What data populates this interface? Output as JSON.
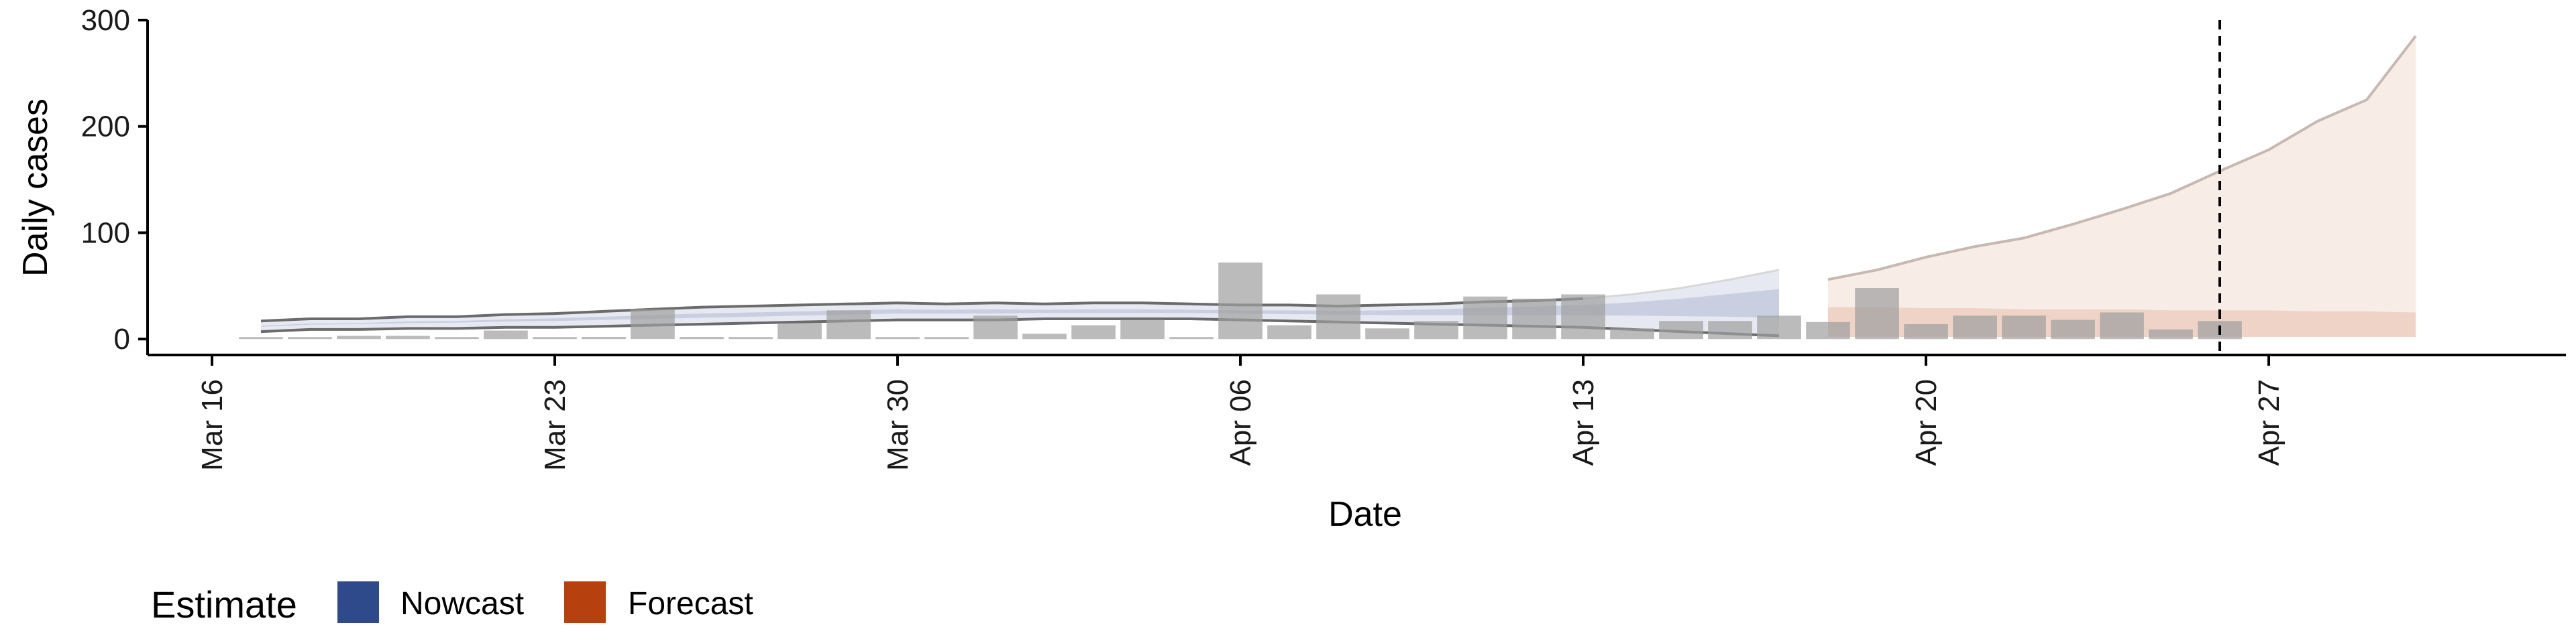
{
  "colors": {
    "nowcast": "#2F4A8A",
    "forecast": "#B7410E",
    "bars": "#9E9E9E",
    "line": "#6B6B6B",
    "axis": "#000000"
  },
  "chart_data": {
    "type": "bar",
    "xlabel": "Date",
    "ylabel": "Daily cases",
    "x_ticks": [
      "Mar 16",
      "Mar 23",
      "Mar 30",
      "Apr 06",
      "Apr 13",
      "Apr 20",
      "Apr 27"
    ],
    "y_ticks": [
      "0",
      "100",
      "200",
      "300"
    ],
    "ylim": [
      -15,
      300
    ],
    "xlim": [
      "2020-03-16",
      "2020-04-30"
    ],
    "marker_date": "2020-04-26",
    "dates": [
      "2020-03-17",
      "2020-03-18",
      "2020-03-19",
      "2020-03-20",
      "2020-03-21",
      "2020-03-22",
      "2020-03-23",
      "2020-03-24",
      "2020-03-25",
      "2020-03-26",
      "2020-03-27",
      "2020-03-28",
      "2020-03-29",
      "2020-03-30",
      "2020-03-31",
      "2020-04-01",
      "2020-04-02",
      "2020-04-03",
      "2020-04-04",
      "2020-04-05",
      "2020-04-06",
      "2020-04-07",
      "2020-04-08",
      "2020-04-09",
      "2020-04-10",
      "2020-04-11",
      "2020-04-12",
      "2020-04-13",
      "2020-04-14",
      "2020-04-15",
      "2020-04-16",
      "2020-04-17",
      "2020-04-18",
      "2020-04-19",
      "2020-04-20",
      "2020-04-21",
      "2020-04-22",
      "2020-04-23",
      "2020-04-24",
      "2020-04-25",
      "2020-04-26",
      "2020-04-27",
      "2020-04-28",
      "2020-04-29",
      "2020-04-30"
    ],
    "series": [
      {
        "name": "Daily cases (observed)",
        "values": [
          0,
          0,
          3,
          3,
          0,
          8,
          0,
          2,
          28,
          2,
          0,
          15,
          27,
          0,
          0,
          22,
          5,
          13,
          18,
          0,
          72,
          13,
          42,
          10,
          17,
          40,
          38,
          42,
          10,
          17,
          17,
          22,
          16,
          48,
          14,
          22,
          22,
          18,
          25,
          9,
          17,
          null,
          null,
          null,
          null
        ]
      },
      {
        "name": "Nowcast",
        "lower": [
          7,
          9,
          9,
          10,
          10,
          11,
          11,
          12,
          13,
          14,
          15,
          16,
          17,
          18,
          18,
          18,
          19,
          19,
          19,
          19,
          18,
          17,
          16,
          15,
          14,
          13,
          12,
          11,
          9,
          7,
          5,
          3
        ],
        "median": [
          12,
          14,
          15,
          16,
          17,
          18,
          19,
          20,
          21,
          22,
          23,
          24,
          25,
          26,
          26,
          26,
          26,
          26,
          26,
          26,
          26,
          26,
          26,
          26,
          27,
          28,
          29,
          30,
          31,
          32,
          33,
          33
        ],
        "upper": [
          17,
          19,
          19,
          21,
          21,
          23,
          24,
          26,
          28,
          30,
          31,
          32,
          33,
          34,
          33,
          34,
          33,
          34,
          34,
          33,
          32,
          32,
          31,
          32,
          33,
          35,
          36,
          38,
          42,
          48,
          56,
          65
        ]
      },
      {
        "name": "Forecast",
        "lower": [
          2,
          2,
          2,
          2,
          2,
          2,
          2,
          2,
          2,
          2,
          2,
          2,
          2
        ],
        "median": [
          30,
          30,
          29,
          29,
          28,
          28,
          28,
          27,
          27,
          27,
          26,
          26,
          25
        ],
        "upper": [
          56,
          65,
          77,
          87,
          95,
          108,
          122,
          137,
          158,
          178,
          205,
          225,
          285
        ]
      }
    ]
  },
  "legend": {
    "title": "Estimate",
    "items": [
      "Nowcast",
      "Forecast"
    ]
  }
}
